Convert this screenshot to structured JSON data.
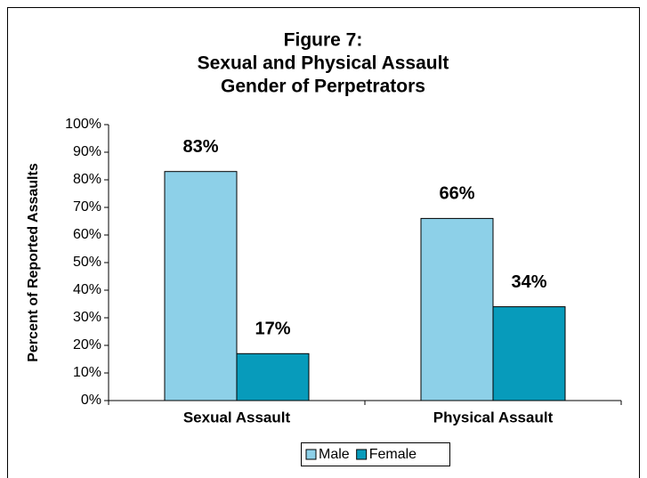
{
  "chart_data": {
    "type": "bar",
    "title": [
      "Figure 7:",
      "Sexual and Physical Assault",
      "Gender of Perpetrators"
    ],
    "y_label": "Percent of Reported Assaults",
    "categories": [
      "Sexual Assault",
      "Physical Assault"
    ],
    "series": [
      {
        "name": "Male",
        "color": "#8dd0e8",
        "values": [
          83,
          66
        ],
        "value_labels": [
          "83%",
          "66%"
        ]
      },
      {
        "name": "Female",
        "color": "#079bbb",
        "values": [
          17,
          34
        ],
        "value_labels": [
          "17%",
          "34%"
        ]
      }
    ],
    "ylim": [
      0,
      100
    ],
    "yticks": [
      {
        "value": 0,
        "label": "0%"
      },
      {
        "value": 10,
        "label": "10%"
      },
      {
        "value": 20,
        "label": "20%"
      },
      {
        "value": 30,
        "label": "30%"
      },
      {
        "value": 40,
        "label": "40%"
      },
      {
        "value": 50,
        "label": "50%"
      },
      {
        "value": 60,
        "label": "60%"
      },
      {
        "value": 70,
        "label": "70%"
      },
      {
        "value": 80,
        "label": "80%"
      },
      {
        "value": 90,
        "label": "90%"
      },
      {
        "value": 100,
        "label": "100%"
      }
    ],
    "legend": "bottom"
  }
}
